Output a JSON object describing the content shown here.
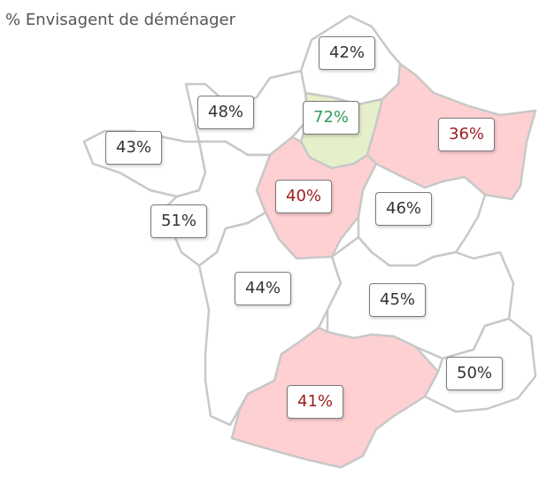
{
  "title": "% Envisagent de déménager",
  "colors": {
    "neutral_fill": "#ffffff",
    "low_fill": "#ffd0d2",
    "high_fill": "#e5efc9",
    "border": "#c8c8c8",
    "neutral_text": "#333333",
    "low_text": "#9b1c1c",
    "high_text": "#2e9b58"
  },
  "regions": [
    {
      "id": "hauts-de-france",
      "value": "42%",
      "status": "neutral"
    },
    {
      "id": "normandie",
      "value": "48%",
      "status": "neutral"
    },
    {
      "id": "ile-de-france",
      "value": "72%",
      "status": "high"
    },
    {
      "id": "grand-est",
      "value": "36%",
      "status": "low"
    },
    {
      "id": "bretagne",
      "value": "43%",
      "status": "neutral"
    },
    {
      "id": "centre-val-de-loire",
      "value": "40%",
      "status": "low"
    },
    {
      "id": "pays-de-la-loire",
      "value": "51%",
      "status": "neutral"
    },
    {
      "id": "bourgogne-franche-comte",
      "value": "46%",
      "status": "neutral"
    },
    {
      "id": "nouvelle-aquitaine",
      "value": "44%",
      "status": "neutral"
    },
    {
      "id": "auvergne-rhone-alpes",
      "value": "45%",
      "status": "neutral"
    },
    {
      "id": "occitanie",
      "value": "41%",
      "status": "low"
    },
    {
      "id": "provence-alpes-cote-d-azur",
      "value": "50%",
      "status": "neutral"
    }
  ]
}
